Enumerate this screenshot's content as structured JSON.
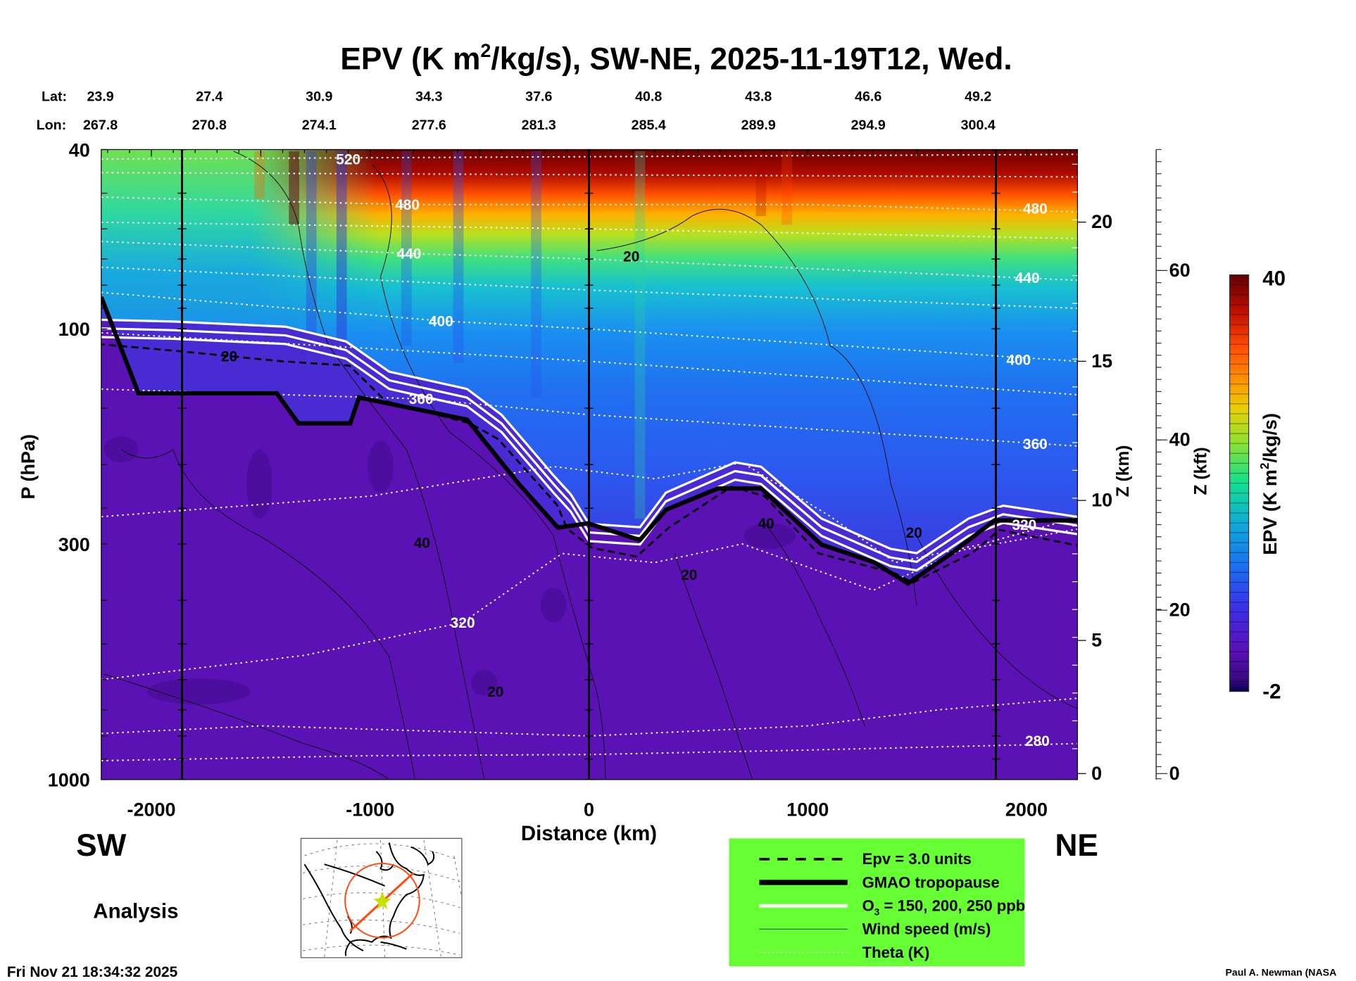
{
  "title": {
    "prefix": "EPV (K m",
    "sup": "2",
    "suffix": "/kg/s), SW-NE, 2025-11-19T12, Wed."
  },
  "lat_label": "Lat:",
  "lon_label": "Lon:",
  "lats": [
    "23.9",
    "27.4",
    "30.9",
    "34.3",
    "37.6",
    "40.8",
    "43.8",
    "46.6",
    "49.2"
  ],
  "lons": [
    "267.8",
    "270.8",
    "274.1",
    "277.6",
    "281.3",
    "285.4",
    "289.9",
    "294.9",
    "300.4"
  ],
  "side_left": "SW",
  "side_right": "NE",
  "analysis_label": "Analysis",
  "timestamp": "Fri Nov 21 18:34:32 2025",
  "credit": "Paul A. Newman (NASA",
  "colors": {
    "legend_bg": "#66ff33",
    "trajectory": "#ff4a10",
    "star": "#c8e000",
    "troposphere": "#5a12b4"
  },
  "chart_data": {
    "type": "heatmap",
    "title": "EPV (K m2/kg/s), SW-NE, 2025-11-19T12, Wed.",
    "xlabel": "Distance (km)",
    "ylabel": "P (hPa)",
    "y2label": "Z (km)",
    "y3label": "Z (kft)",
    "xlim": [
      -2230,
      2230
    ],
    "ylim": [
      1000,
      40
    ],
    "yscale": "log",
    "xticks": [
      "-2000",
      "-1000",
      "0",
      "1000",
      "2000"
    ],
    "xtick_values": [
      -2000,
      -1000,
      0,
      1000,
      2000
    ],
    "yticks": [
      "40",
      "100",
      "300",
      "1000"
    ],
    "ytick_values": [
      40,
      100,
      300,
      1000
    ],
    "zkm_ticks": [
      "20",
      "15",
      "10",
      "5",
      "0"
    ],
    "zkft_ticks": [
      "60",
      "40",
      "20",
      "0"
    ],
    "colorbar": {
      "label_prefix": "EPV (K m",
      "label_sup": "2",
      "label_suffix": "/kg/s)",
      "min_label": "-2",
      "max_label": "40",
      "range": [
        -2,
        40
      ]
    },
    "section_marks_km": [
      -1860,
      0,
      1860
    ],
    "tropopause": [
      [
        -2229,
        85
      ],
      [
        -2059,
        139
      ],
      [
        -1427,
        139
      ],
      [
        -1328,
        162
      ],
      [
        -1091,
        162
      ],
      [
        -1051,
        142
      ],
      [
        -557,
        159
      ],
      [
        -320,
        221
      ],
      [
        -142,
        276
      ],
      [
        -4,
        270
      ],
      [
        233,
        294
      ],
      [
        352,
        252
      ],
      [
        589,
        226
      ],
      [
        787,
        226
      ],
      [
        1063,
        301
      ],
      [
        1300,
        329
      ],
      [
        1458,
        367
      ],
      [
        1656,
        315
      ],
      [
        1854,
        266
      ],
      [
        2233,
        266
      ]
    ],
    "theta_lines": [
      {
        "level": "520",
        "points": [
          [
            -2229,
            42
          ],
          [
            0,
            41.5
          ],
          [
            2233,
            41
          ]
        ],
        "labels": [
          [
            -1100,
            42
          ]
        ]
      },
      {
        "level": "500",
        "points": [
          [
            -2229,
            45
          ],
          [
            0,
            45.5
          ],
          [
            2233,
            46
          ]
        ],
        "labels": []
      },
      {
        "level": "480",
        "points": [
          [
            -2229,
            51
          ],
          [
            -830,
            53
          ],
          [
            1000,
            53
          ],
          [
            2233,
            55
          ]
        ],
        "labels": [
          [
            -830,
            53
          ],
          [
            2040,
            54
          ]
        ]
      },
      {
        "level": "460",
        "points": [
          [
            -2229,
            58
          ],
          [
            0,
            60
          ],
          [
            2233,
            63
          ]
        ],
        "labels": []
      },
      {
        "level": "440",
        "points": [
          [
            -2229,
            64
          ],
          [
            -822,
            68
          ],
          [
            0,
            70
          ],
          [
            2233,
            78
          ]
        ],
        "labels": [
          [
            -822,
            68
          ],
          [
            2004,
            77
          ]
        ]
      },
      {
        "level": "420",
        "points": [
          [
            -2229,
            73
          ],
          [
            0,
            82
          ],
          [
            2233,
            90
          ]
        ],
        "labels": []
      },
      {
        "level": "400",
        "points": [
          [
            -2229,
            83
          ],
          [
            -676,
            96
          ],
          [
            0,
            100
          ],
          [
            2233,
            118
          ]
        ],
        "labels": [
          [
            -676,
            96
          ],
          [
            1964,
            117
          ]
        ]
      },
      {
        "level": "380",
        "points": [
          [
            -2229,
            102
          ],
          [
            0,
            118
          ],
          [
            2233,
            140
          ]
        ],
        "labels": []
      },
      {
        "level": "360",
        "points": [
          [
            -2229,
            136
          ],
          [
            -767,
            143
          ],
          [
            0,
            155
          ],
          [
            2233,
            182
          ]
        ],
        "labels": [
          [
            -767,
            143
          ],
          [
            2040,
            180
          ]
        ]
      },
      {
        "level": "340",
        "points": [
          [
            -2229,
            261
          ],
          [
            -1000,
            235
          ],
          [
            -160,
            202
          ],
          [
            300,
            215
          ],
          [
            700,
            198
          ],
          [
            1100,
            260
          ],
          [
            1400,
            330
          ],
          [
            1800,
            300
          ],
          [
            2233,
            262
          ]
        ],
        "labels": []
      },
      {
        "level": "320",
        "points": [
          [
            -2229,
            600
          ],
          [
            -1300,
            530
          ],
          [
            -577,
            448
          ],
          [
            -123,
            315
          ],
          [
            300,
            330
          ],
          [
            700,
            300
          ],
          [
            1300,
            380
          ],
          [
            1700,
            310
          ],
          [
            2233,
            278
          ]
        ],
        "labels": [
          [
            -577,
            448
          ],
          [
            1990,
            272
          ]
        ]
      },
      {
        "level": "300",
        "points": [
          [
            -2229,
            790
          ],
          [
            -1500,
            760
          ],
          [
            0,
            800
          ],
          [
            1000,
            760
          ],
          [
            1600,
            700
          ],
          [
            2233,
            660
          ]
        ],
        "labels": []
      },
      {
        "level": "280",
        "points": [
          [
            -2229,
            908
          ],
          [
            -1000,
            885
          ],
          [
            0,
            880
          ],
          [
            1000,
            860
          ],
          [
            2233,
            832
          ]
        ],
        "labels": [
          [
            2050,
            820
          ]
        ]
      }
    ],
    "wind_labels": [
      {
        "text": "20",
        "at": [
          194,
          69
        ]
      },
      {
        "text": "20",
        "at": [
          -1644,
          115
        ]
      },
      {
        "text": "40",
        "at": [
          -763,
          298
        ]
      },
      {
        "text": "20",
        "at": [
          458,
          351
        ]
      },
      {
        "text": "20",
        "at": [
          -427,
          638
        ]
      },
      {
        "text": "40",
        "at": [
          810,
          270
        ]
      },
      {
        "text": "20",
        "at": [
          1486,
          283
        ]
      }
    ]
  },
  "legend": {
    "items": [
      {
        "style": "dashed",
        "label": "Epv = 3.0 units"
      },
      {
        "style": "thick",
        "label": "GMAO tropopause"
      },
      {
        "style": "white",
        "label_prefix": "O",
        "label_sub": "3",
        "label": " = 150, 200, 250 ppb"
      },
      {
        "style": "thin",
        "label": "Wind speed (m/s)"
      },
      {
        "style": "dotted",
        "label": "Theta (K)"
      }
    ]
  }
}
